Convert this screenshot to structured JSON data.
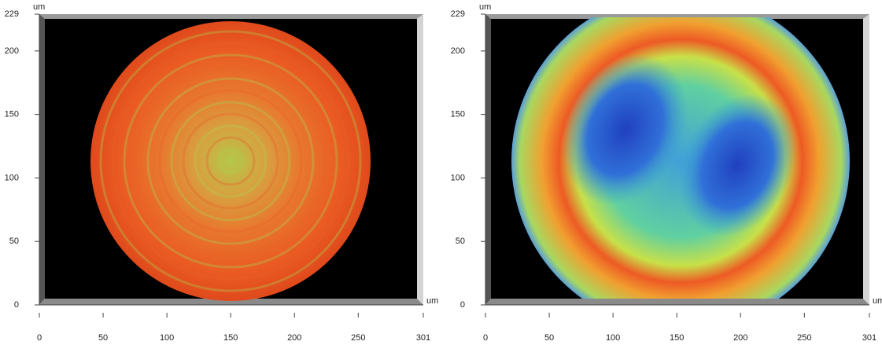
{
  "chart_data": [
    {
      "type": "surface-map",
      "x_label": "um",
      "y_label": "um",
      "xlim": [
        0,
        301
      ],
      "ylim": [
        0,
        229
      ],
      "xticks": [
        0,
        50,
        100,
        150,
        200,
        250,
        301
      ],
      "yticks": [
        0,
        50,
        100,
        150,
        200,
        229
      ]
    },
    {
      "type": "surface-map",
      "x_label": "um",
      "y_label": "um",
      "xlim": [
        0,
        301
      ],
      "ylim": [
        0,
        229
      ],
      "xticks": [
        0,
        50,
        100,
        150,
        200,
        250,
        301
      ],
      "yticks": [
        0,
        50,
        100,
        150,
        200,
        229
      ]
    }
  ]
}
